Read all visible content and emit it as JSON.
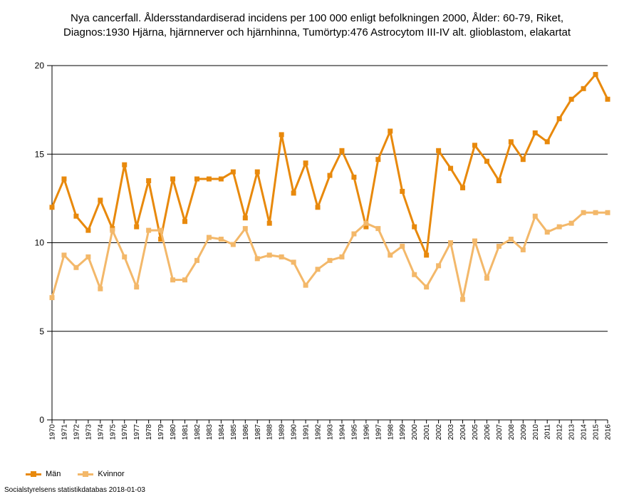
{
  "chart_data": {
    "type": "line",
    "title_lines": [
      "Nya cancerfall. Åldersstandardiserad incidens per 100 000 enligt befolkningen 2000, Ålder: 60-79, Riket,",
      "Diagnos:1930 Hjärna, hjärnnerver och hjärnhinna, Tumörtyp:476 Astrocytom III-IV alt. glioblastom, elakartat"
    ],
    "categories": [
      "1970",
      "1971",
      "1972",
      "1973",
      "1974",
      "1975",
      "1976",
      "1977",
      "1978",
      "1979",
      "1980",
      "1981",
      "1982",
      "1983",
      "1984",
      "1985",
      "1986",
      "1987",
      "1988",
      "1989",
      "1990",
      "1991",
      "1992",
      "1993",
      "1994",
      "1995",
      "1996",
      "1997",
      "1998",
      "1999",
      "2000",
      "2001",
      "2002",
      "2003",
      "2004",
      "2005",
      "2006",
      "2007",
      "2008",
      "2009",
      "2010",
      "2011",
      "2012",
      "2013",
      "2014",
      "2015",
      "2016"
    ],
    "y_ticks": [
      "0",
      "5",
      "10",
      "15",
      "20"
    ],
    "ylim": [
      0,
      20
    ],
    "grid": true,
    "legend_position": "bottom-left",
    "series": [
      {
        "name": "Män",
        "color": "#e8890c",
        "values": [
          12.0,
          13.6,
          11.5,
          10.7,
          12.4,
          10.8,
          14.4,
          10.9,
          13.5,
          10.2,
          13.6,
          11.2,
          13.6,
          13.6,
          13.6,
          14.0,
          11.4,
          14.0,
          11.1,
          16.1,
          12.8,
          14.5,
          12.0,
          13.8,
          15.2,
          13.7,
          10.9,
          14.7,
          16.3,
          12.9,
          10.9,
          9.3,
          15.2,
          14.2,
          13.1,
          15.5,
          14.6,
          13.5,
          15.7,
          14.7,
          16.2,
          15.7,
          17.0,
          18.1,
          18.7,
          19.5,
          18.1
        ]
      },
      {
        "name": "Kvinnor",
        "color": "#f3b86a",
        "values": [
          6.9,
          9.3,
          8.6,
          9.2,
          7.4,
          10.7,
          9.2,
          7.5,
          10.7,
          10.7,
          7.9,
          7.9,
          9.0,
          10.3,
          10.2,
          9.9,
          10.8,
          9.1,
          9.3,
          9.2,
          8.9,
          7.6,
          8.5,
          9.0,
          9.2,
          10.5,
          11.1,
          10.8,
          9.3,
          9.8,
          8.2,
          7.5,
          8.7,
          10.0,
          6.8,
          10.1,
          8.0,
          9.8,
          10.2,
          9.6,
          11.5,
          10.6,
          10.9,
          11.1,
          11.7,
          11.7,
          11.7
        ]
      }
    ]
  },
  "footer": {
    "source": "Socialstyrelsens statistikdatabas 2018-01-03"
  }
}
